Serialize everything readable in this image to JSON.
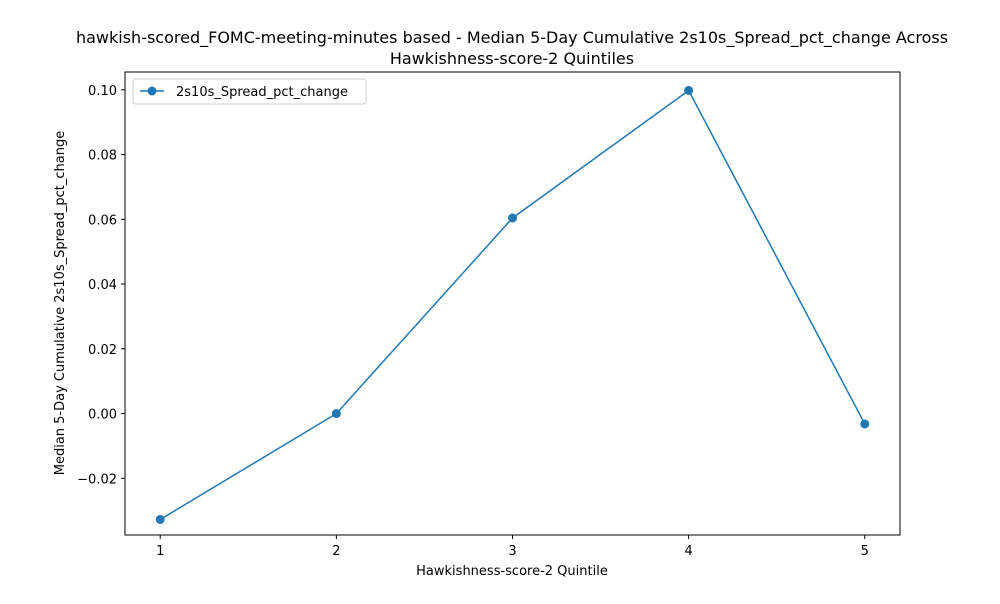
{
  "chart_data": {
    "type": "line",
    "title_lines": [
      "hawkish-scored_FOMC-meeting-minutes based - Median 5-Day Cumulative 2s10s_Spread_pct_change Across",
      "Hawkishness-score-2 Quintiles"
    ],
    "xlabel": "Hawkishness-score-2 Quintile",
    "ylabel": "Median 5-Day Cumulative 2s10s_Spread_pct_change",
    "x": [
      1,
      2,
      3,
      4,
      5
    ],
    "xlim": [
      0.8,
      5.2
    ],
    "ylim": [
      -0.0375,
      0.1055
    ],
    "x_ticks": [
      1,
      2,
      3,
      4,
      5
    ],
    "x_tick_labels": [
      "1",
      "2",
      "3",
      "4",
      "5"
    ],
    "y_ticks": [
      -0.02,
      0.0,
      0.02,
      0.04,
      0.06,
      0.08,
      0.1
    ],
    "y_tick_labels": [
      "−0.02",
      "0.00",
      "0.02",
      "0.04",
      "0.06",
      "0.08",
      "0.10"
    ],
    "series": [
      {
        "name": "2s10s_Spread_pct_change",
        "values": [
          -0.0327,
          0.0,
          0.0604,
          0.0998,
          -0.0032
        ],
        "color": "#1f77b4",
        "marker": "circle"
      }
    ],
    "legend": {
      "placement": "top-left",
      "entries": [
        "2s10s_Spread_pct_change"
      ]
    },
    "grid": false
  }
}
